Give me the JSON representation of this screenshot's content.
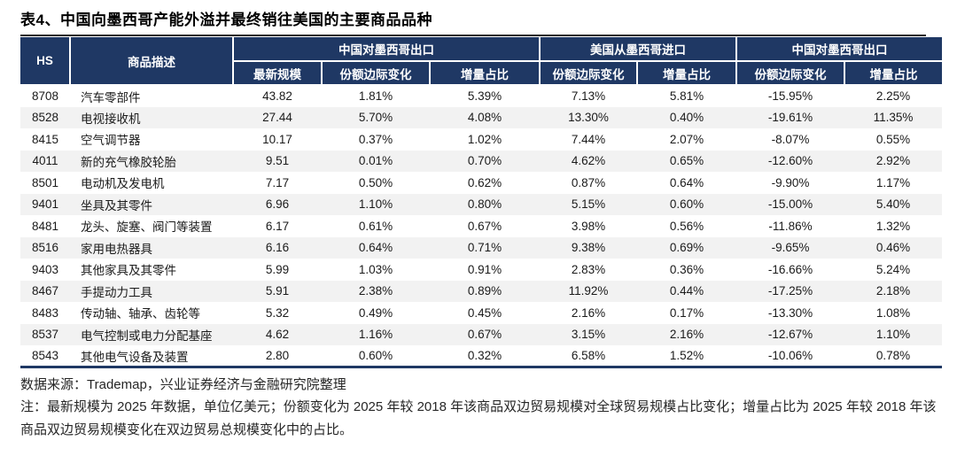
{
  "title": "表4、中国向墨西哥产能外溢并最终销往美国的主要商品品种",
  "colors": {
    "header_bg": "#1f3864",
    "row_alt_bg": "#f2f2f2",
    "rule_dark": "#262626",
    "header_text": "#ffffff"
  },
  "table": {
    "hs_label": "HS",
    "desc_label": "商品描述",
    "groups": [
      "中国对墨西哥出口",
      "美国从墨西哥进口",
      "中国对墨西哥出口"
    ],
    "subheaders": [
      "最新规模",
      "份额边际变化",
      "增量占比",
      "份额边际变化",
      "增量占比",
      "份额边际变化",
      "增量占比"
    ],
    "rows": [
      [
        "8708",
        "汽车零部件",
        "43.82",
        "1.81%",
        "5.39%",
        "7.13%",
        "5.81%",
        "-15.95%",
        "2.25%"
      ],
      [
        "8528",
        "电视接收机",
        "27.44",
        "5.70%",
        "4.08%",
        "13.30%",
        "0.40%",
        "-19.61%",
        "11.35%"
      ],
      [
        "8415",
        "空气调节器",
        "10.17",
        "0.37%",
        "1.02%",
        "7.44%",
        "2.07%",
        "-8.07%",
        "0.55%"
      ],
      [
        "4011",
        "新的充气橡胶轮胎",
        "9.51",
        "0.01%",
        "0.70%",
        "4.62%",
        "0.65%",
        "-12.60%",
        "2.92%"
      ],
      [
        "8501",
        "电动机及发电机",
        "7.17",
        "0.50%",
        "0.62%",
        "0.87%",
        "0.64%",
        "-9.90%",
        "1.17%"
      ],
      [
        "9401",
        "坐具及其零件",
        "6.96",
        "1.10%",
        "0.80%",
        "5.15%",
        "0.60%",
        "-15.00%",
        "5.40%"
      ],
      [
        "8481",
        "龙头、旋塞、阀门等装置",
        "6.17",
        "0.61%",
        "0.67%",
        "3.98%",
        "0.56%",
        "-11.86%",
        "1.32%"
      ],
      [
        "8516",
        "家用电热器具",
        "6.16",
        "0.64%",
        "0.71%",
        "9.38%",
        "0.69%",
        "-9.65%",
        "0.46%"
      ],
      [
        "9403",
        "其他家具及其零件",
        "5.99",
        "1.03%",
        "0.91%",
        "2.83%",
        "0.36%",
        "-16.66%",
        "5.24%"
      ],
      [
        "8467",
        "手提动力工具",
        "5.91",
        "2.38%",
        "0.89%",
        "11.92%",
        "0.44%",
        "-17.25%",
        "2.18%"
      ],
      [
        "8483",
        "传动轴、轴承、齿轮等",
        "5.32",
        "0.49%",
        "0.45%",
        "2.16%",
        "0.17%",
        "-13.30%",
        "1.08%"
      ],
      [
        "8537",
        "电气控制或电力分配基座",
        "4.62",
        "1.16%",
        "0.67%",
        "3.15%",
        "2.16%",
        "-12.67%",
        "1.10%"
      ],
      [
        "8543",
        "其他电气设备及装置",
        "2.80",
        "0.60%",
        "0.32%",
        "6.58%",
        "1.52%",
        "-10.06%",
        "0.78%"
      ]
    ]
  },
  "footer": {
    "source": "数据来源：Trademap，兴业证券经济与金融研究院整理",
    "note": "注：最新规模为 2025 年数据，单位亿美元；份额变化为 2025 年较 2018 年该商品双边贸易规模对全球贸易规模占比变化；增量占比为 2025 年较 2018 年该商品双边贸易规模变化在双边贸易总规模变化中的占比。"
  }
}
